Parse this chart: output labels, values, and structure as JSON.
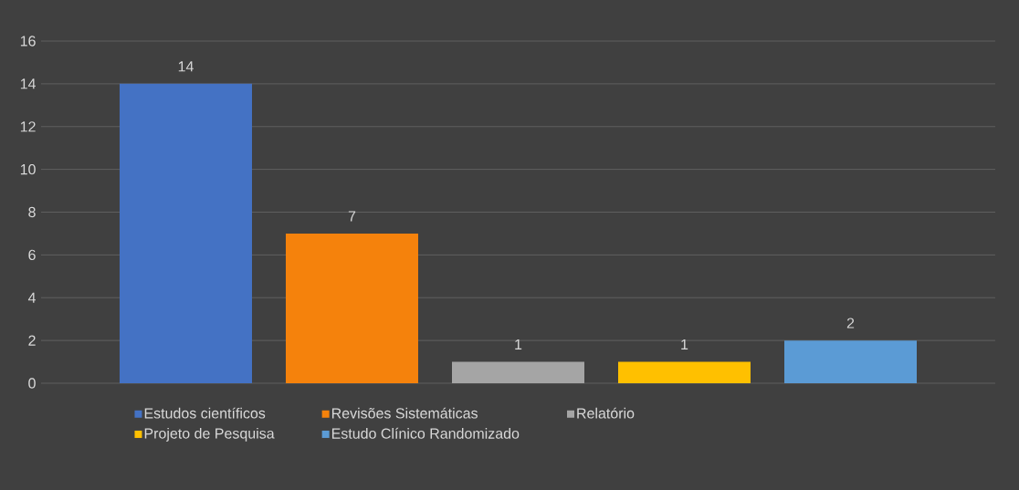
{
  "chart_data": {
    "type": "bar",
    "categories": [
      null
    ],
    "series": [
      {
        "name": "Estudos científicos",
        "color": "#4472c4",
        "values": [
          14
        ]
      },
      {
        "name": "Revisões Sistemáticas",
        "color": "#f5820c",
        "values": [
          7
        ]
      },
      {
        "name": "Relatório",
        "color": "#a5a5a5",
        "values": [
          1
        ]
      },
      {
        "name": "Projeto de Pesquisa",
        "color": "#ffc000",
        "values": [
          1
        ]
      },
      {
        "name": "Estudo Clínico Randomizado",
        "color": "#5b9bd5",
        "values": [
          2
        ]
      }
    ],
    "ylim": [
      0,
      16
    ],
    "yticks": [
      0,
      2,
      4,
      6,
      8,
      10,
      12,
      14,
      16
    ],
    "grid": "y",
    "legend": "bottom",
    "data_labels": true
  }
}
